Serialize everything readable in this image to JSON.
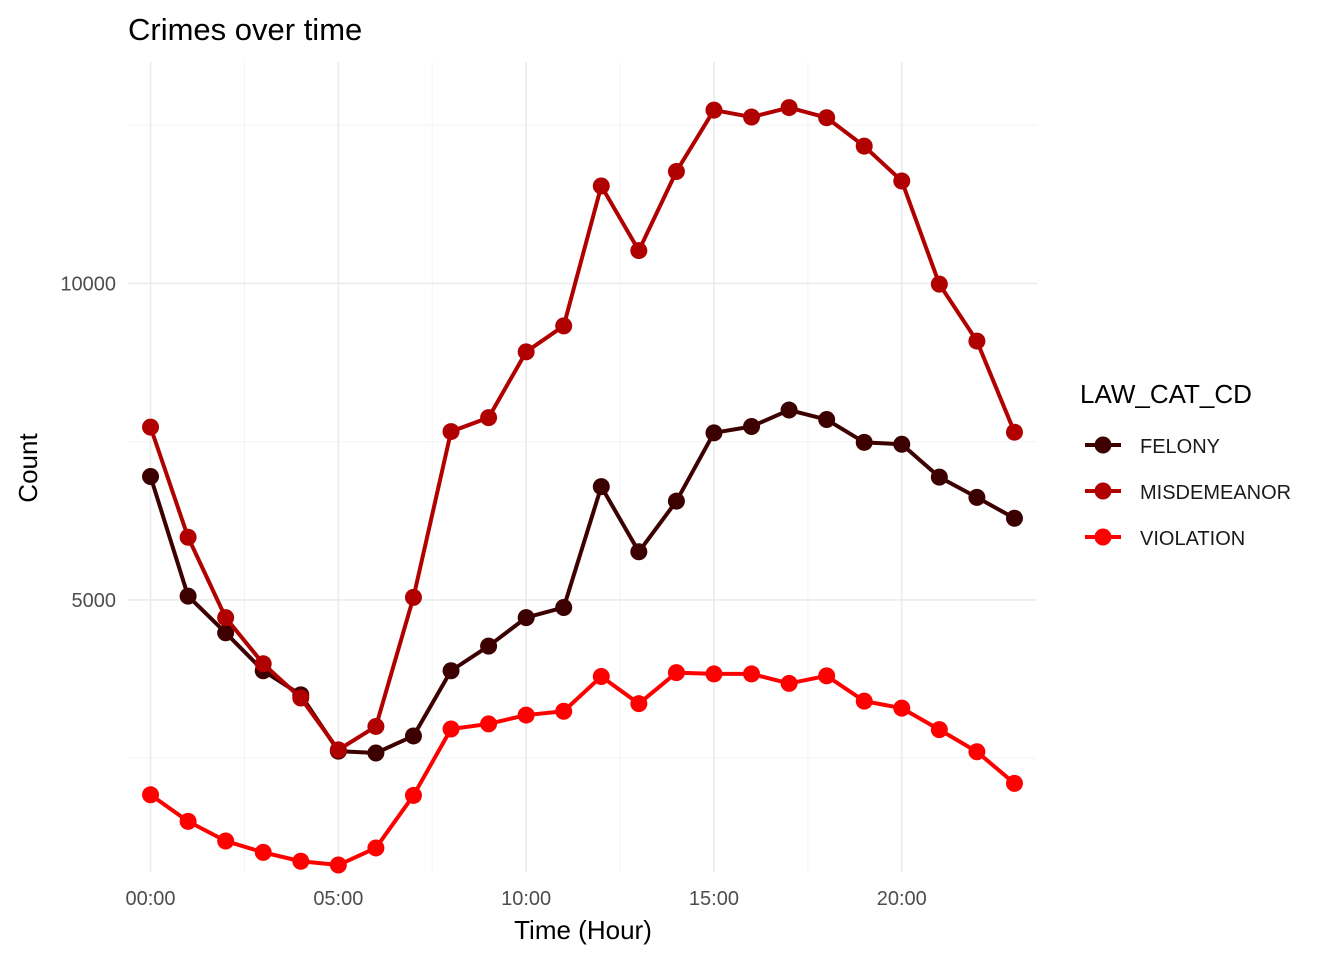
{
  "chart_data": {
    "type": "line",
    "title": "Crimes over time",
    "xlabel": "Time (Hour)",
    "ylabel": "Count",
    "x": [
      0,
      1,
      2,
      3,
      4,
      5,
      6,
      7,
      8,
      9,
      10,
      11,
      12,
      13,
      14,
      15,
      16,
      17,
      18,
      19,
      20,
      21,
      22,
      23
    ],
    "x_ticks": [
      0,
      5,
      10,
      15,
      20
    ],
    "x_tick_labels": [
      "00:00",
      "05:00",
      "10:00",
      "15:00",
      "20:00"
    ],
    "y_ticks": [
      5000,
      10000
    ],
    "y_tick_labels": [
      "5000",
      "10000"
    ],
    "xlim": [
      -0.6,
      23.6
    ],
    "ylim": [
      700,
      13500
    ],
    "grid": true,
    "legend_placement": "right",
    "legend_title": "LAW_CAT_CD",
    "series": [
      {
        "name": "FELONY",
        "color": "#3d0000",
        "values": [
          6950,
          5060,
          4480,
          3880,
          3500,
          2610,
          2580,
          2850,
          3880,
          4270,
          4720,
          4880,
          6790,
          5760,
          6560,
          7640,
          7740,
          8000,
          7850,
          7490,
          7460,
          6940,
          6620,
          6290
        ]
      },
      {
        "name": "MISDEMEANOR",
        "color": "#b00000",
        "values": [
          7730,
          5990,
          4720,
          3990,
          3450,
          2630,
          3000,
          5040,
          7660,
          7880,
          8920,
          9330,
          11540,
          10520,
          11770,
          12740,
          12630,
          12780,
          12620,
          12170,
          11620,
          9990,
          9090,
          7650
        ]
      },
      {
        "name": "VIOLATION",
        "color": "#ff0000",
        "values": [
          1920,
          1500,
          1190,
          1010,
          870,
          810,
          1080,
          1910,
          2960,
          3040,
          3180,
          3240,
          3790,
          3360,
          3850,
          3830,
          3830,
          3680,
          3800,
          3400,
          3290,
          2950,
          2600,
          2100
        ]
      }
    ]
  }
}
